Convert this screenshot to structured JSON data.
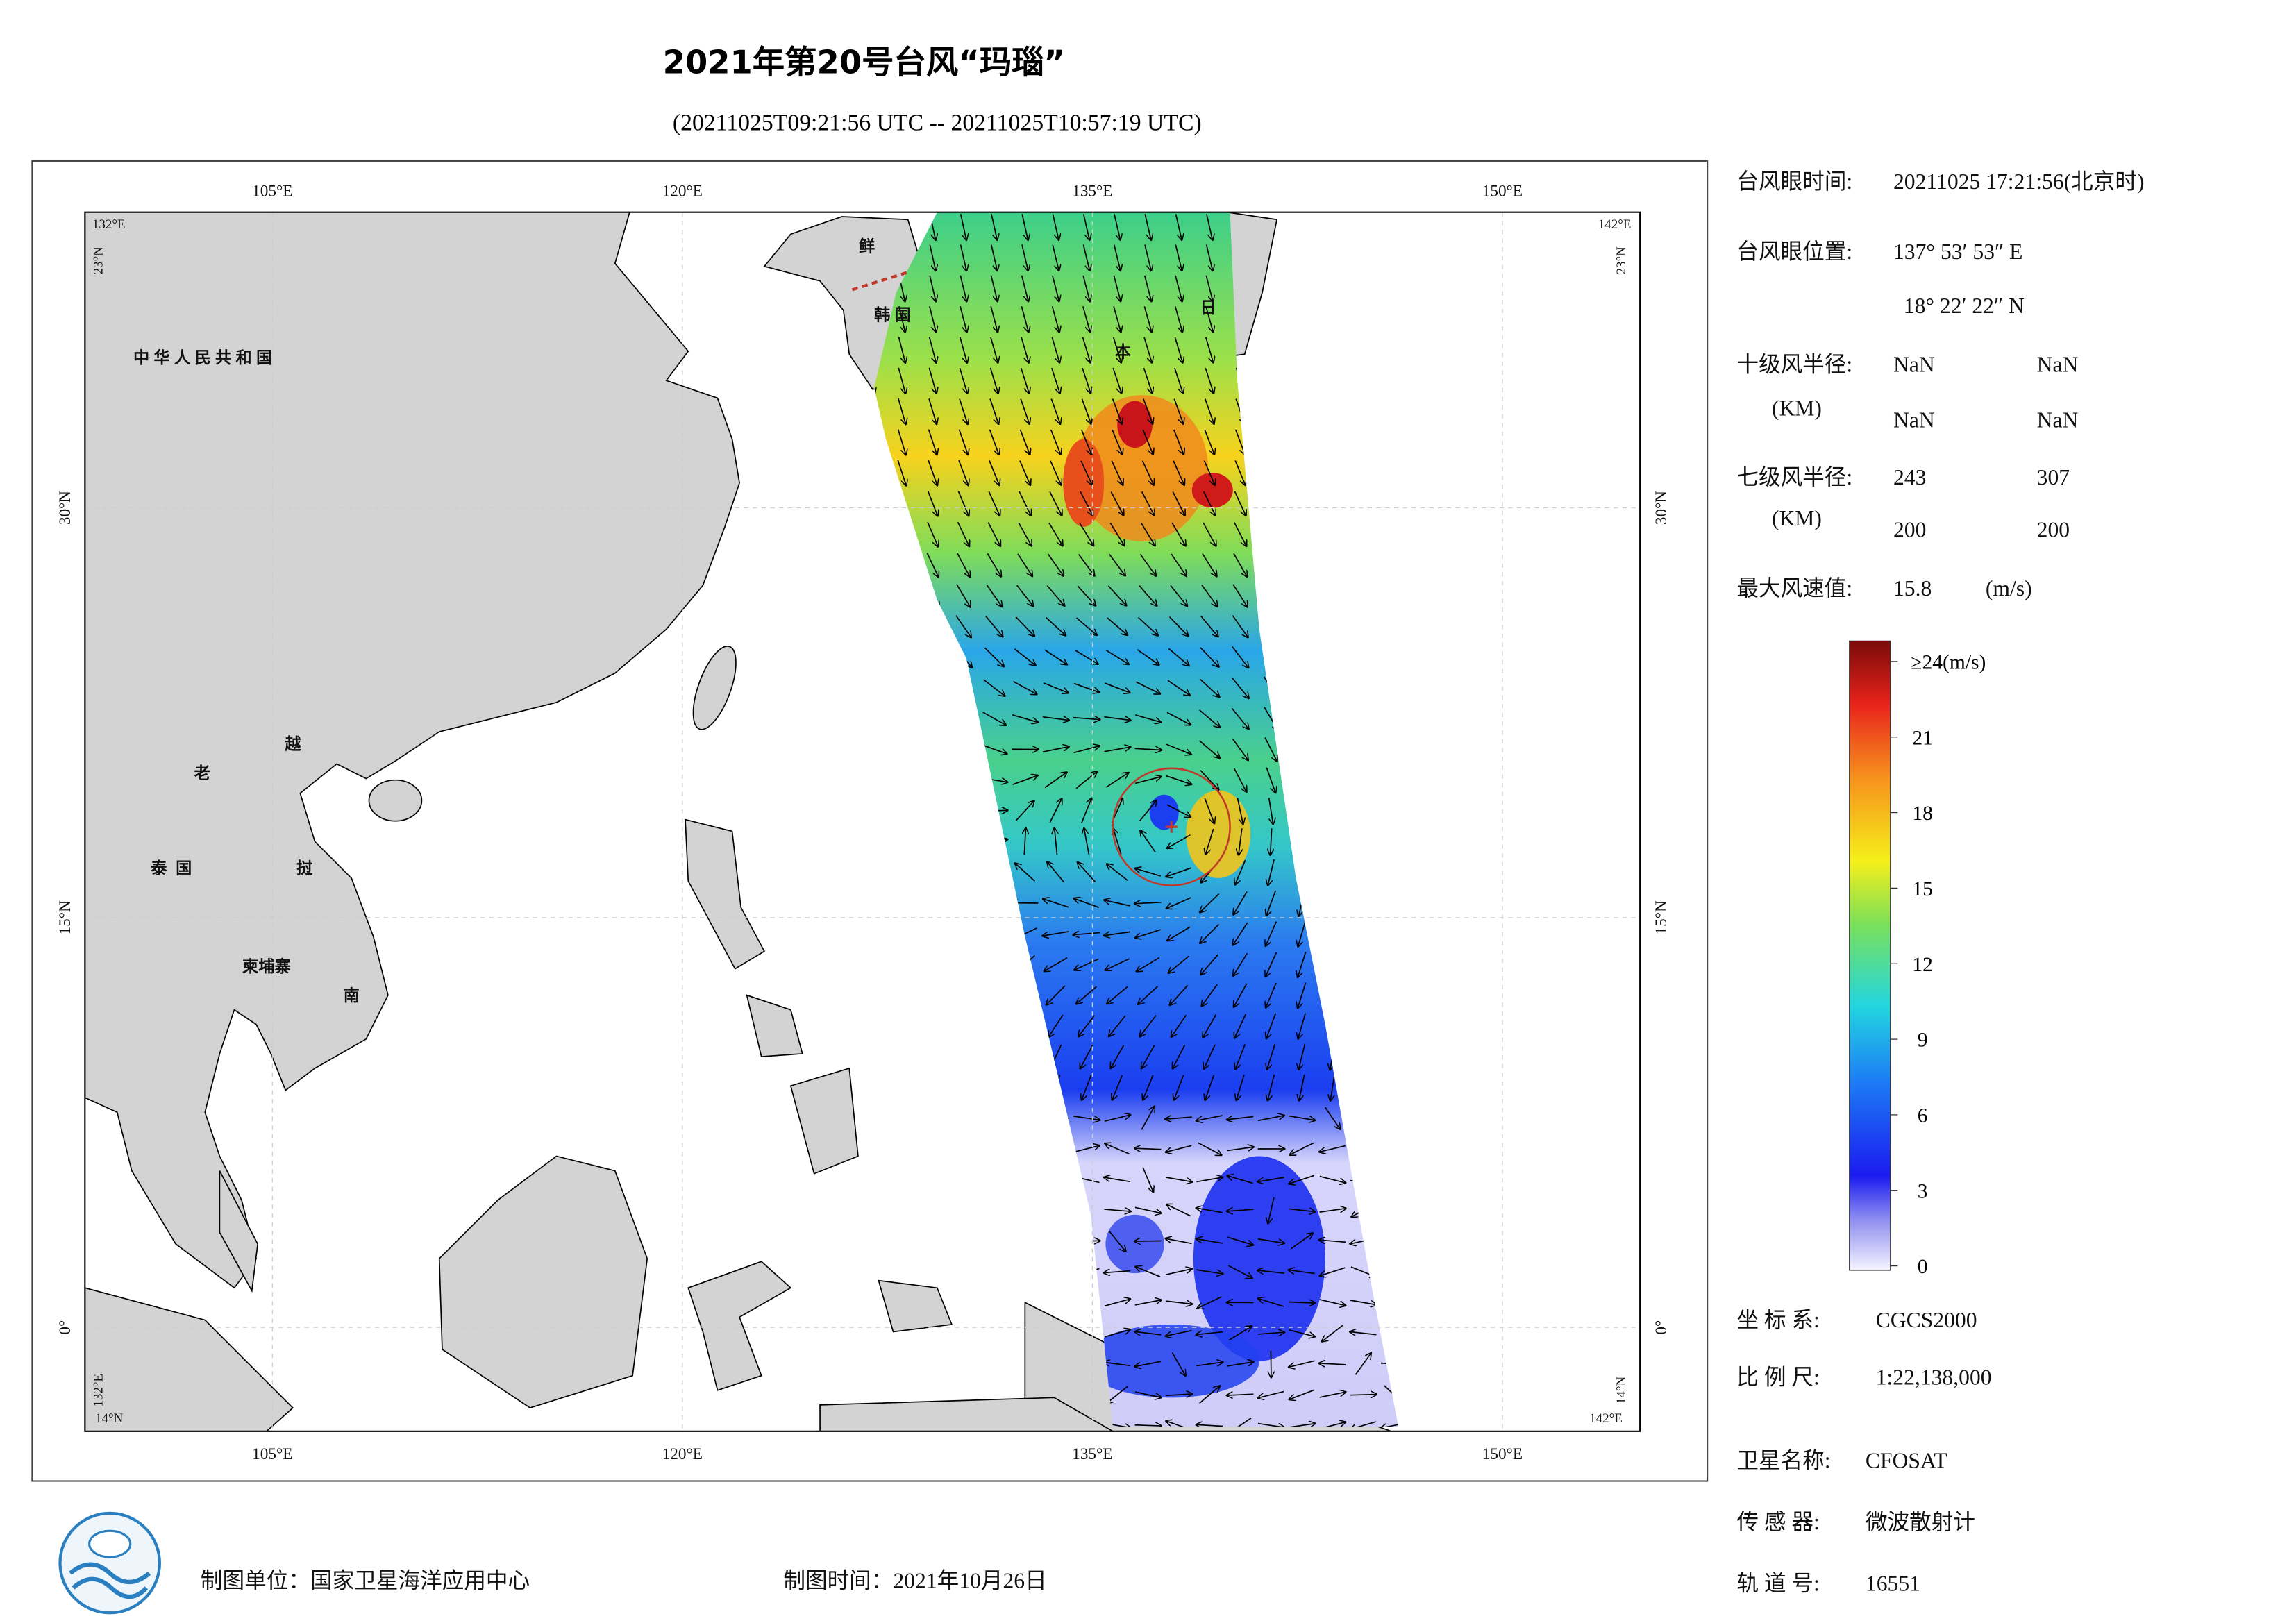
{
  "header": {
    "title": "2021年第20号台风“玛瑙”",
    "subtitle": "(20211025T09:21:56 UTC -- 20211025T10:57:19 UTC)"
  },
  "map": {
    "lon_labels_top": [
      "105°E",
      "120°E",
      "135°E",
      "150°E"
    ],
    "lon_labels_bottom": [
      "105°E",
      "120°E",
      "135°E",
      "150°E"
    ],
    "lat_labels_left": [
      "30°N",
      "15°N",
      "0°"
    ],
    "lat_labels_right": [
      "30°N",
      "15°N",
      "0°"
    ],
    "corner_labels": [
      "132°E",
      "23°N",
      "142°E",
      "23°N",
      "132°E",
      "14°N",
      "142°E",
      "14°N"
    ],
    "place_labels": [
      "中华人民共和国",
      "老",
      "越",
      "泰国",
      "挝",
      "柬埔寨",
      "南",
      "鲜",
      "韩国",
      "日",
      "本"
    ]
  },
  "info": {
    "eye_time": {
      "label": "台风眼时间:",
      "value": "20211025 17:21:56(北京时)"
    },
    "eye_position": {
      "label": "台风眼位置:",
      "lon": "137° 53′ 53″ E",
      "lat": "18° 22′ 22″ N"
    },
    "r10": {
      "label": "十级风半径:",
      "unit": "(KM)",
      "values": [
        "NaN",
        "NaN",
        "NaN",
        "NaN"
      ]
    },
    "r7": {
      "label": "七级风半径:",
      "unit": "(KM)",
      "values": [
        "243",
        "307",
        "200",
        "200"
      ]
    },
    "max_wind": {
      "label": "最大风速值:",
      "value": "15.8",
      "unit": "(m/s)"
    }
  },
  "colorbar": {
    "range": [
      0,
      24
    ],
    "ticks": [
      0,
      3,
      6,
      9,
      12,
      15,
      18,
      21,
      {
        "value": 24,
        "label": "≥24(m/s)"
      }
    ]
  },
  "footer": {
    "coord_system": {
      "label": "坐 标 系:",
      "value": "CGCS2000"
    },
    "scale": {
      "label": "比 例 尺:",
      "value": "1:22,138,000"
    },
    "satellite": {
      "label": "卫星名称:",
      "value": "CFOSAT"
    },
    "sensor": {
      "label": "传 感 器:",
      "value": "微波散射计"
    },
    "orbit": {
      "label": "轨 道 号:",
      "value": "16551"
    },
    "producer": "制图单位：国家卫星海洋应用中心",
    "date": "制图时间：2021年10月26日"
  }
}
